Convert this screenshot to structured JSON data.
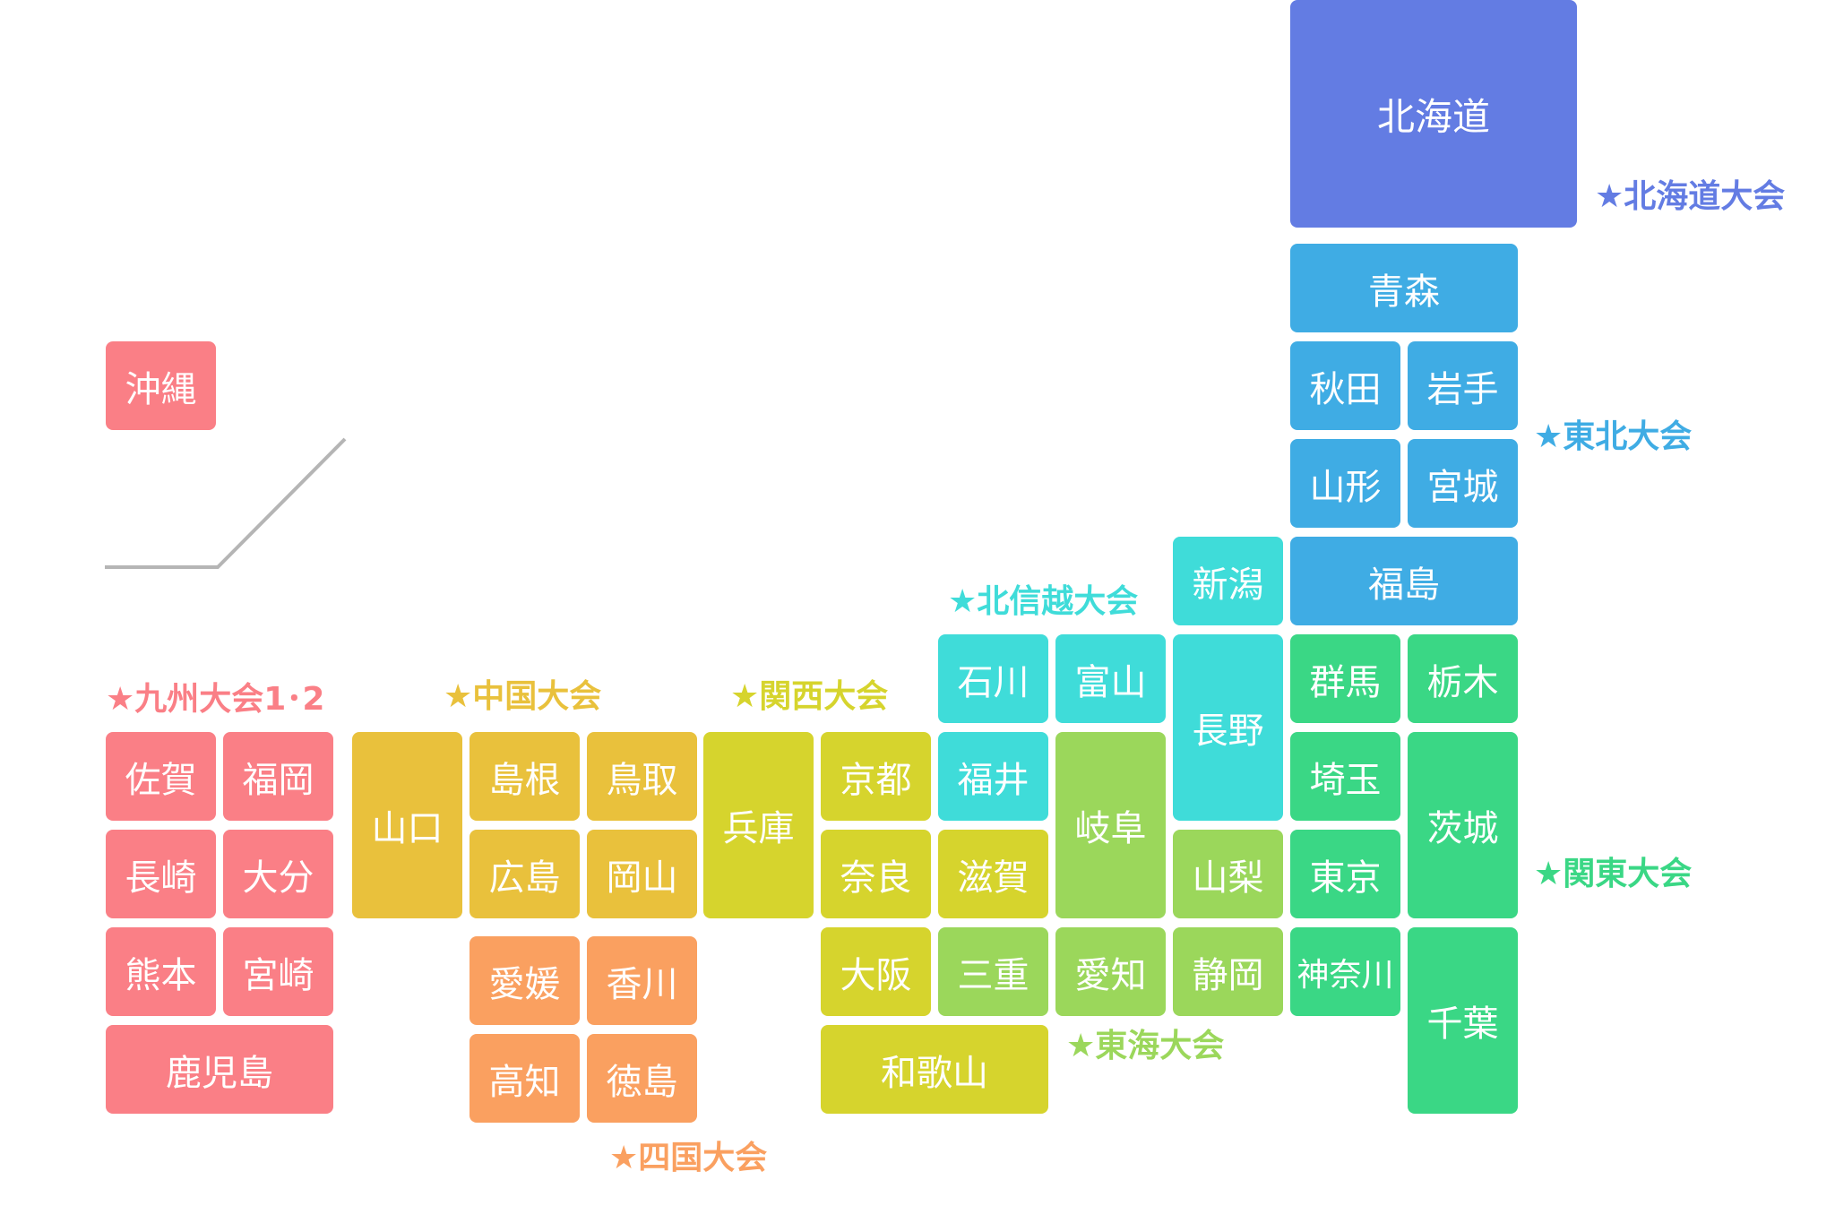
{
  "colors": {
    "hokkaido": "#637CE3",
    "tohoku": "#3FACE4",
    "kanto": "#3AD785",
    "hokushinetsu": "#3FDCD9",
    "tokai": "#9BD75B",
    "kansai": "#D6D42D",
    "chugoku": "#E9C13C",
    "shikoku": "#FAA060",
    "kyushu": "#FA7F86"
  },
  "regions": {
    "hokkaido": "★北海道大会",
    "tohoku": "★東北大会",
    "kanto": "★関東大会",
    "hokushinetsu": "★北信越大会",
    "tokai": "★東海大会",
    "kansai": "★関西大会",
    "chugoku": "★中国大会",
    "shikoku": "★四国大会",
    "kyushu": "★九州大会1･2"
  },
  "prefectures": {
    "hokkaido": "北海道",
    "aomori": "青森",
    "akita": "秋田",
    "iwate": "岩手",
    "yamagata": "山形",
    "miyagi": "宮城",
    "fukushima": "福島",
    "gunma": "群馬",
    "tochigi": "栃木",
    "saitama": "埼玉",
    "ibaraki": "茨城",
    "tokyo": "東京",
    "kanagawa": "神奈川",
    "chiba": "千葉",
    "yamanashi": "山梨",
    "niigata": "新潟",
    "nagano": "長野",
    "ishikawa": "石川",
    "toyama": "富山",
    "fukui": "福井",
    "gifu": "岐阜",
    "shizuoka": "静岡",
    "aichi": "愛知",
    "mie": "三重",
    "shiga": "滋賀",
    "kyoto": "京都",
    "nara": "奈良",
    "osaka": "大阪",
    "wakayama": "和歌山",
    "hyogo": "兵庫",
    "shimane": "島根",
    "tottori": "鳥取",
    "hiroshima": "広島",
    "okayama": "岡山",
    "yamaguchi": "山口",
    "ehime": "愛媛",
    "kagawa": "香川",
    "kochi": "高知",
    "tokushima": "徳島",
    "saga": "佐賀",
    "fukuoka": "福岡",
    "nagasaki": "長崎",
    "oita": "大分",
    "kumamoto": "熊本",
    "miyazaki": "宮崎",
    "kagoshima": "鹿児島",
    "okinawa": "沖縄"
  }
}
